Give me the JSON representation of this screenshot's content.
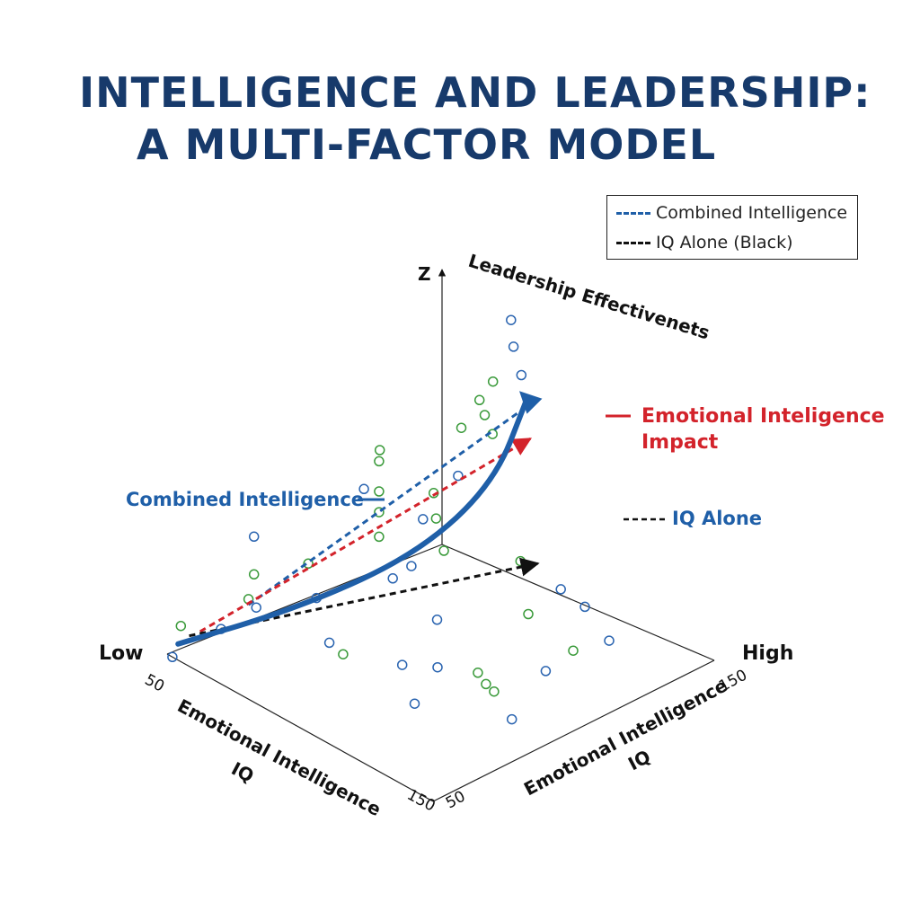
{
  "title": {
    "line1": "INTELLIGENCE AND LEADERSHIP:",
    "line2": "A MULTI-FACTOR MODEL"
  },
  "legend": {
    "position": "top-right",
    "items": [
      {
        "label": "Combined Intelligence",
        "color": "#1f5fa8",
        "style": "dashed"
      },
      {
        "label": "IQ Alone (Black)",
        "color": "#111111",
        "style": "dashed"
      }
    ]
  },
  "colors": {
    "title": "#173a6b",
    "combined": "#1f5fa8",
    "emotional": "#d3232b",
    "iq_alone": "#111111",
    "green_points": "#3a9a3a",
    "blue_points": "#2a64b0"
  },
  "chart_data": {
    "type": "scatter",
    "projection": "3d",
    "axes": {
      "z_label": "Z",
      "z_title": "Leadership Effectivenets",
      "left_axis_title": "Emotional Intelligence",
      "left_axis_subtitle": "IQ",
      "right_axis_title": "Emotional Intelligence",
      "right_axis_subtitle": "IQ",
      "low_label": "Low",
      "high_label": "High",
      "left_ticks": [
        "50",
        "150"
      ],
      "right_ticks": [
        "50",
        "150"
      ]
    },
    "annotations": {
      "combined": "Combined Intelligence",
      "emotional_line1": "Emotional Inteligence",
      "emotional_line2": "Impact",
      "iq_alone": "IQ Alone"
    },
    "series": [
      {
        "name": "Combined Intelligence",
        "style": "dashed",
        "color": "#1f5fa8",
        "points": [
          [
            0.18,
            0.12,
            0.25
          ],
          [
            1.02,
            0.28,
            0.92
          ]
        ]
      },
      {
        "name": "Emotional Inteligence Impact",
        "style": "dashed",
        "color": "#d3232b",
        "points": [
          [
            0.12,
            0.0,
            0.05
          ],
          [
            1.05,
            0.28,
            0.75
          ]
        ]
      },
      {
        "name": "IQ Alone",
        "style": "dashed",
        "color": "#111111",
        "points": [
          [
            0.08,
            0.0,
            0.05
          ],
          [
            1.0,
            0.36,
            0.18
          ]
        ]
      },
      {
        "name": "Leadership Effectivenets",
        "style": "solid-arrow",
        "color": "#1f5fa8",
        "points": [
          [
            0.04,
            0.0,
            0.03
          ],
          [
            0.4,
            0.1,
            0.1
          ],
          [
            0.7,
            0.22,
            0.3
          ],
          [
            0.9,
            0.3,
            0.62
          ],
          [
            0.98,
            0.34,
            1.05
          ]
        ]
      }
    ],
    "scatter_green": [
      [
        0.05,
        0.0,
        0.12
      ],
      [
        0.18,
        0.12,
        0.28
      ],
      [
        0.2,
        0.12,
        0.4
      ],
      [
        0.32,
        0.2,
        0.45
      ],
      [
        0.5,
        0.28,
        0.55
      ],
      [
        0.5,
        0.28,
        0.68
      ],
      [
        0.5,
        0.28,
        0.79
      ],
      [
        0.5,
        0.28,
        0.95
      ],
      [
        0.7,
        0.5,
        1.15
      ],
      [
        0.72,
        0.45,
        1.2
      ],
      [
        0.73,
        0.42,
        1.25
      ],
      [
        0.75,
        0.45,
        1.36
      ],
      [
        0.62,
        0.4,
        0.5
      ],
      [
        0.64,
        0.35,
        0.62
      ],
      [
        0.66,
        0.32,
        0.72
      ],
      [
        0.85,
        0.45,
        0.35
      ],
      [
        0.83,
        0.5,
        0.12
      ],
      [
        0.8,
        0.7,
        0.1
      ],
      [
        0.55,
        0.6,
        0.05
      ],
      [
        0.56,
        0.62,
        0.0
      ],
      [
        0.57,
        0.64,
        -0.03
      ],
      [
        0.35,
        0.3,
        0.03
      ],
      [
        0.58,
        0.2,
        0.9
      ],
      [
        0.78,
        0.3,
        0.98
      ]
    ],
    "scatter_blue": [
      [
        0.0,
        0.02,
        0.0
      ],
      [
        0.08,
        0.12,
        0.18
      ],
      [
        0.15,
        0.18,
        0.3
      ],
      [
        0.2,
        0.12,
        0.6
      ],
      [
        0.35,
        0.2,
        0.25
      ],
      [
        0.3,
        0.3,
        0.12
      ],
      [
        0.55,
        0.28,
        0.3
      ],
      [
        0.55,
        0.35,
        0.42
      ],
      [
        0.42,
        0.45,
        0.05
      ],
      [
        0.5,
        0.5,
        0.03
      ],
      [
        0.66,
        0.28,
        0.55
      ],
      [
        0.72,
        0.35,
        0.8
      ],
      [
        0.45,
        0.55,
        0.35
      ],
      [
        0.9,
        0.55,
        0.25
      ],
      [
        0.92,
        0.62,
        0.2
      ],
      [
        0.95,
        0.68,
        0.05
      ],
      [
        0.7,
        0.7,
        0.05
      ],
      [
        0.32,
        0.6,
        0.02
      ],
      [
        0.48,
        0.8,
        0.0
      ],
      [
        0.95,
        0.35,
        1.2
      ],
      [
        0.97,
        0.3,
        1.3
      ],
      [
        0.98,
        0.28,
        1.42
      ],
      [
        0.6,
        0.12,
        0.62
      ]
    ]
  }
}
